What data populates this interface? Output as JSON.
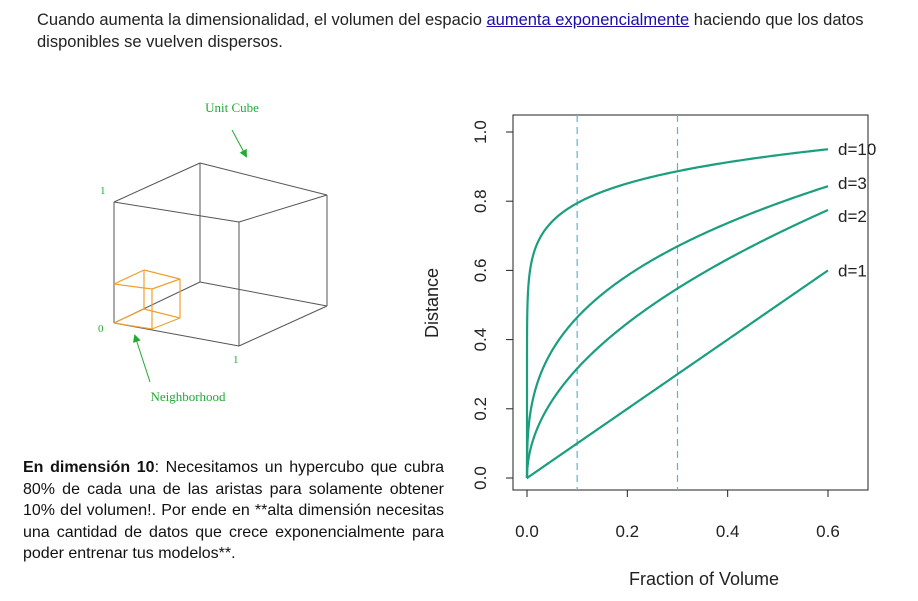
{
  "intro": {
    "prefix": "Cuando aumenta la dimensionalidad, el volumen del espacio ",
    "link": "aumenta exponencialmente",
    "suffix": " haciendo que los datos disponibles se vuelven dispersos."
  },
  "cube_diagram": {
    "title": "Unit Cube",
    "neighborhood_label": "Neighborhood",
    "label_one_y": "1",
    "label_zero": "0",
    "label_one_x": "1",
    "colors": {
      "cube": "#555555",
      "neighborhood": "#f0a030",
      "annotation": "#22aa33"
    }
  },
  "explanation": {
    "bold": "En dimensión 10",
    "text": ": Necesitamos un hypercubo que cubra 80% de cada una de las aristas para solamente obtener 10% del volumen!. Por ende en **alta dimensión necesitas una cantidad de datos que crece exponencialmente para poder entrenar tus modelos**."
  },
  "chart_data": {
    "type": "line",
    "xlabel": "Fraction of Volume",
    "ylabel": "Distance",
    "xlim": [
      0,
      0.6
    ],
    "ylim": [
      0,
      1.0
    ],
    "xticks": [
      "0.0",
      "0.2",
      "0.4",
      "0.6"
    ],
    "yticks": [
      "0.0",
      "0.2",
      "0.4",
      "0.6",
      "0.8",
      "1.0"
    ],
    "reference_lines_x": [
      0.1,
      0.3
    ],
    "line_color": "#1a9e7e",
    "reference_color": "#5ab4d6",
    "series": [
      {
        "name": "d=10",
        "dimension": 10
      },
      {
        "name": "d=3",
        "dimension": 3
      },
      {
        "name": "d=2",
        "dimension": 2
      },
      {
        "name": "d=1",
        "dimension": 1
      }
    ]
  }
}
